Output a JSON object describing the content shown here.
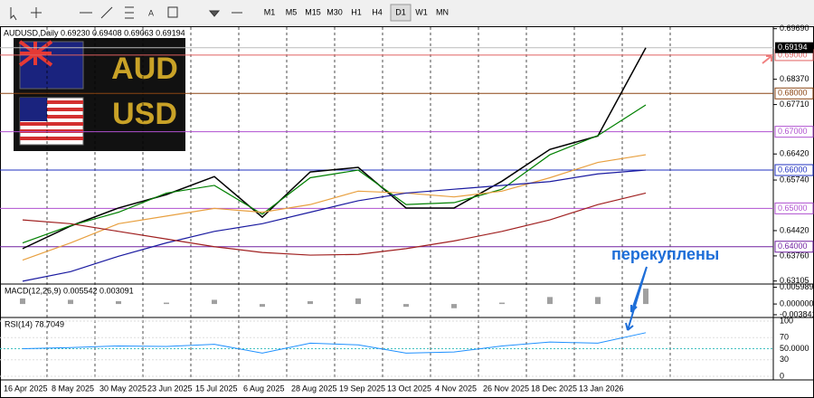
{
  "toolbar": {
    "timeframes": [
      "M1",
      "M5",
      "M15",
      "M30",
      "H1",
      "H4",
      "D1",
      "W1",
      "MN"
    ]
  },
  "chart_data": {
    "type": "line",
    "title": "AUDUSD,Daily  0.69230 0.69408 0.69063 0.69194",
    "categories": [
      "16 Apr 2025",
      "8 May 2025",
      "30 May 2025",
      "23 Jun 2025",
      "15 Jul 2025",
      "6 Aug 2025",
      "28 Aug 2025",
      "19 Sep 2025",
      "13 Oct 2025",
      "4 Nov 2025",
      "26 Nov 2025",
      "18 Dec 2025",
      "13 Jan 2026",
      null
    ],
    "series": [
      {
        "color": "#000000",
        "values": [
          0.6395,
          0.6454,
          0.6501,
          0.6536,
          0.6583,
          0.6477,
          0.6595,
          0.6607,
          0.6501,
          0.6501,
          0.6571,
          0.6654,
          0.6689,
          0.6919
        ]
      },
      {
        "color": "#008000",
        "values": [
          0.641,
          0.6455,
          0.649,
          0.654,
          0.656,
          0.6485,
          0.658,
          0.66,
          0.651,
          0.6515,
          0.655,
          0.664,
          0.669,
          0.677
        ]
      },
      {
        "color": "#e8a040",
        "values": [
          0.6365,
          0.641,
          0.646,
          0.648,
          0.65,
          0.649,
          0.651,
          0.6545,
          0.654,
          0.653,
          0.6545,
          0.658,
          0.662,
          0.664
        ]
      },
      {
        "color": "#1a1aa0",
        "values": [
          0.631,
          0.6335,
          0.6375,
          0.641,
          0.644,
          0.646,
          0.649,
          0.652,
          0.654,
          0.655,
          0.656,
          0.657,
          0.659,
          0.66
        ]
      },
      {
        "color": "#a02020",
        "values": [
          0.647,
          0.646,
          0.644,
          0.642,
          0.64,
          0.6385,
          0.6378,
          0.638,
          0.6395,
          0.6415,
          0.644,
          0.647,
          0.651,
          0.654
        ]
      }
    ],
    "ylim": [
      0.6305,
      0.6973
    ],
    "yticks": [
      {
        "value": 0.6969,
        "label": "0.69690"
      },
      {
        "value": 0.6837,
        "label": "0.68370"
      },
      {
        "value": 0.6771,
        "label": "0.67710"
      },
      {
        "value": 0.6642,
        "label": "0.66420"
      },
      {
        "value": 0.6574,
        "label": "0.65740"
      },
      {
        "value": 0.6442,
        "label": "0.64420"
      },
      {
        "value": 0.6376,
        "label": "0.63760"
      },
      {
        "value": 0.63105,
        "label": "0.63105"
      }
    ],
    "levels": [
      {
        "value": 0.69,
        "label": "0.69000",
        "color": "#e06060"
      },
      {
        "value": 0.68,
        "label": "0.68000",
        "color": "#8b4513"
      },
      {
        "value": 0.67,
        "label": "0.67000",
        "color": "#b050d0"
      },
      {
        "value": 0.66,
        "label": "0.66000",
        "color": "#2030c0"
      },
      {
        "value": 0.65,
        "label": "0.65000",
        "color": "#b050d0"
      },
      {
        "value": 0.64,
        "label": "0.64000",
        "color": "#7020a0"
      }
    ],
    "last": {
      "value": 0.69194,
      "label": "0.69194"
    },
    "annotation": "перекуплены",
    "macd": {
      "title": "MACD(12,26,9) 0.005542 0.003091",
      "color": "#a0a0a0",
      "values": [
        0.002,
        0.0015,
        0.001,
        0.0005,
        0.0015,
        -0.001,
        0.001,
        0.002,
        -0.001,
        -0.0015,
        0.0005,
        0.0025,
        0.0025,
        0.0055
      ],
      "ylim": [
        -0.0045,
        0.0065
      ],
      "yticks": [
        {
          "value": 0.005989,
          "label": "0.005989"
        },
        {
          "value": 0,
          "label": "0.000000"
        },
        {
          "value": -0.003841,
          "label": "-0.003841"
        }
      ]
    },
    "rsi": {
      "title": "RSI(14) 78.7049",
      "color": "#1e90ff",
      "values": [
        50,
        52,
        55,
        54,
        58,
        42,
        60,
        57,
        42,
        44,
        55,
        62,
        60,
        79
      ],
      "ylim": [
        0,
        100
      ],
      "yticks": [
        100,
        70,
        {
          "value": 50,
          "label": "50.0000"
        },
        30,
        0
      ]
    }
  }
}
